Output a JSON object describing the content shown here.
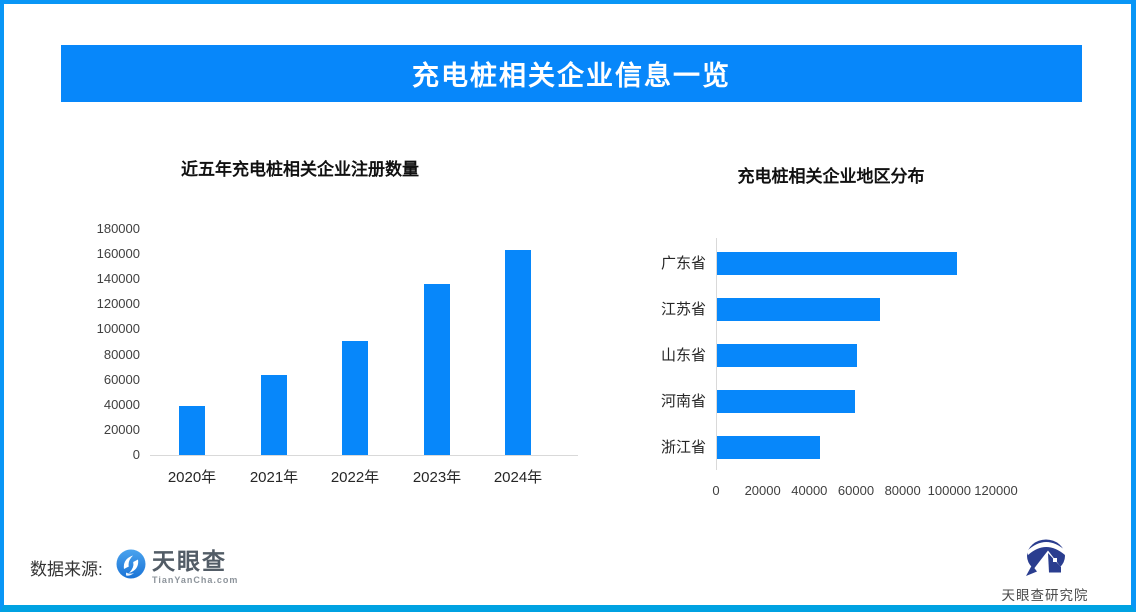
{
  "banner": {
    "title": "充电桩相关企业信息一览"
  },
  "colors": {
    "accent": "#0787fa",
    "border": "#0996f6",
    "bottom_border": "#00a2e2",
    "axis_line": "#d9d9d9",
    "bar": "#0787fa"
  },
  "footer": {
    "source_label": "数据来源:",
    "tianyancha": {
      "name": "天眼查",
      "domain": "TianYanCha.com",
      "icon": "tianyancha-swirl-icon"
    },
    "research_institute": {
      "name": "天眼查研究院",
      "icon": "tianyancha-research-logo"
    }
  },
  "chart_data": [
    {
      "type": "bar",
      "orientation": "vertical",
      "title": "近五年充电桩相关企业注册数量",
      "categories": [
        "2020年",
        "2021年",
        "2022年",
        "2023年",
        "2024年"
      ],
      "values": [
        39000,
        64000,
        91000,
        136000,
        163000
      ],
      "xlabel": "",
      "ylabel": "",
      "ylim": [
        0,
        180000
      ],
      "ytick_step": 20000,
      "grid": false,
      "legend": "none",
      "bar_color": "#0787fa"
    },
    {
      "type": "bar",
      "orientation": "horizontal",
      "title": "充电桩相关企业地区分布",
      "categories": [
        "广东省",
        "江苏省",
        "山东省",
        "河南省",
        "浙江省"
      ],
      "values": [
        103000,
        70000,
        60000,
        59000,
        44000
      ],
      "xlabel": "",
      "ylabel": "",
      "xlim": [
        0,
        120000
      ],
      "xtick_step": 20000,
      "grid": false,
      "legend": "none",
      "bar_color": "#0787fa"
    }
  ]
}
